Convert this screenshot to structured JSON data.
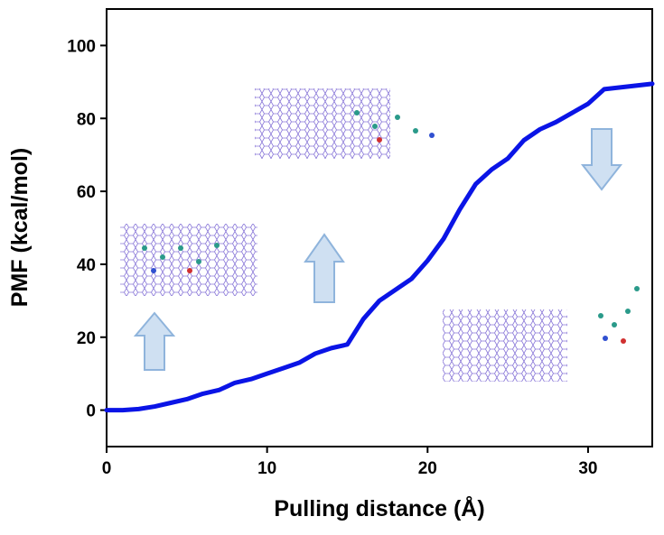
{
  "chart_data": {
    "type": "line",
    "x_label": "Pulling distance (Å)",
    "y_label": "PMF (kcal/mol)",
    "x": [
      0,
      1,
      2,
      3,
      4,
      5,
      6,
      7,
      8,
      9,
      10,
      11,
      12,
      13,
      14,
      15,
      16,
      17,
      18,
      19,
      20,
      21,
      22,
      23,
      24,
      25,
      26,
      27,
      28,
      29,
      30,
      31,
      32,
      33,
      34
    ],
    "series": [
      {
        "color": "#0a14e6",
        "values": [
          0,
          0,
          0.3,
          1,
          2,
          3,
          4.5,
          5.5,
          7.5,
          8.5,
          10,
          11.5,
          13,
          15.5,
          17,
          18,
          25,
          30,
          33,
          36,
          41,
          47,
          55,
          62,
          66,
          69,
          74,
          77,
          79,
          81.5,
          84,
          88,
          88.5,
          89,
          89.5
        ]
      }
    ],
    "xlim": [
      0,
      34
    ],
    "ylim": [
      -10,
      110
    ],
    "xticks": [
      0,
      10,
      20,
      30
    ],
    "yticks": [
      0,
      20,
      40,
      60,
      80,
      100
    ]
  }
}
